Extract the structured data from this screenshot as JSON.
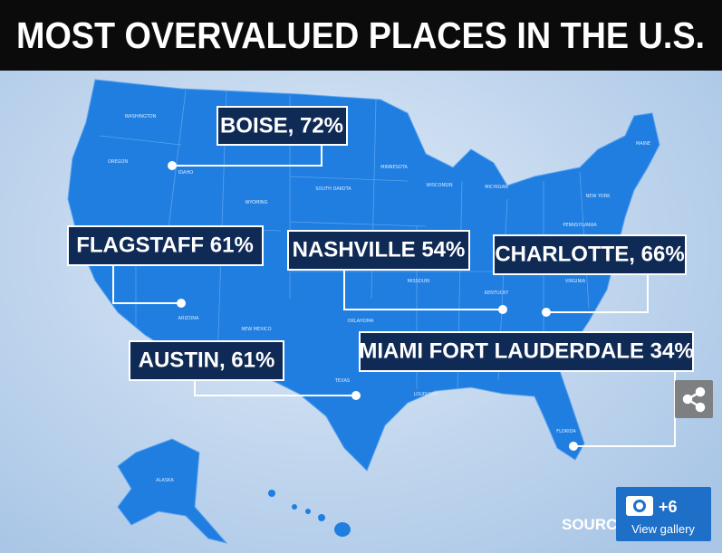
{
  "header": {
    "title": "MOST OVERVALUED PLACES IN THE U.S."
  },
  "callouts": [
    {
      "label": "BOISE, 72%"
    },
    {
      "label": "FLAGSTAFF 61%"
    },
    {
      "label": "NASHVILLE 54%"
    },
    {
      "label": "CHARLOTTE, 66%"
    },
    {
      "label": "AUSTIN, 61%"
    },
    {
      "label": "MIAMI FORT LAUDERDALE 34%"
    }
  ],
  "state_labels": [
    "WASHINGTON",
    "OREGON",
    "IDAHO",
    "WYOMING",
    "SOUTH DAKOTA",
    "MINNESOTA",
    "WISCONSIN",
    "MICHIGAN",
    "NEW YORK",
    "MAINE",
    "PENNSYLVANIA",
    "VIRGINIA",
    "KENTUCKY",
    "MISSOURI",
    "OKLAHOMA",
    "TEXAS",
    "LOUISIANA",
    "FLORIDA",
    "ARIZONA",
    "NEW MEXICO",
    "ALASKA"
  ],
  "source": "SOURCE",
  "gallery": {
    "count": "+6",
    "label": "View gallery"
  }
}
